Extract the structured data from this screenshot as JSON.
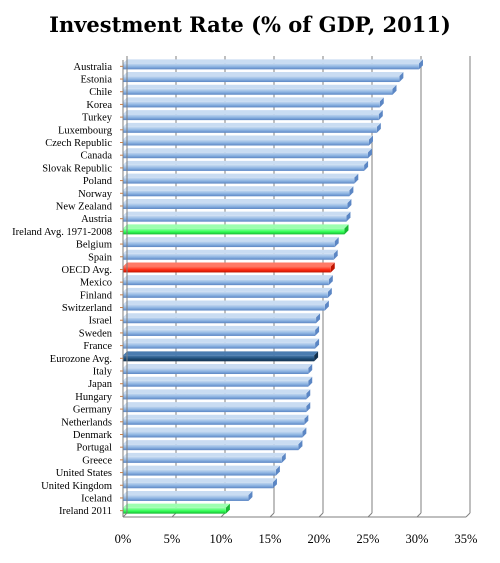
{
  "chart_data": {
    "type": "bar",
    "orientation": "horizontal",
    "title": "Investment Rate (% of GDP, 2011)",
    "xlabel": "",
    "ylabel": "",
    "xlim": [
      0,
      35
    ],
    "x_ticks": [
      "0%",
      "5%",
      "10%",
      "15%",
      "20%",
      "25%",
      "30%",
      "35%"
    ],
    "x_tick_values": [
      0,
      5,
      10,
      15,
      20,
      25,
      30,
      35
    ],
    "grid": true,
    "legend": "none",
    "colors": {
      "default": "#8db4e2",
      "oecd": "#ff2a12",
      "ireland": "#33ff57",
      "eurozone": "#1f4e79"
    },
    "categories": [
      "Australia",
      "Estonia",
      "Chile",
      "Korea",
      "Turkey",
      "Luxembourg",
      "Czech Republic",
      "Canada",
      "Slovak Republic",
      "Poland",
      "Norway",
      "New Zealand",
      "Austria",
      "Ireland Avg. 1971-2008",
      "Belgium",
      "Spain",
      "OECD Avg.",
      "Mexico",
      "Finland",
      "Switzerland",
      "Israel",
      "Sweden",
      "France",
      "Eurozone Avg.",
      "Italy",
      "Japan",
      "Hungary",
      "Germany",
      "Netherlands",
      "Denmark",
      "Portugal",
      "Greece",
      "United States",
      "United Kingdom",
      "Iceland",
      "Ireland 2011"
    ],
    "values": [
      30.2,
      28.2,
      27.5,
      26.2,
      26.1,
      25.9,
      25.1,
      25.0,
      24.6,
      23.6,
      23.1,
      22.9,
      22.8,
      22.6,
      21.6,
      21.5,
      21.2,
      21.0,
      20.9,
      20.6,
      19.7,
      19.6,
      19.6,
      19.5,
      18.9,
      18.9,
      18.7,
      18.7,
      18.5,
      18.3,
      17.9,
      16.2,
      15.6,
      15.3,
      12.8,
      10.5
    ],
    "bar_colors": [
      "default",
      "default",
      "default",
      "default",
      "default",
      "default",
      "default",
      "default",
      "default",
      "default",
      "default",
      "default",
      "default",
      "ireland",
      "default",
      "default",
      "oecd",
      "default",
      "default",
      "default",
      "default",
      "default",
      "default",
      "eurozone",
      "default",
      "default",
      "default",
      "default",
      "default",
      "default",
      "default",
      "default",
      "default",
      "default",
      "default",
      "ireland"
    ]
  }
}
